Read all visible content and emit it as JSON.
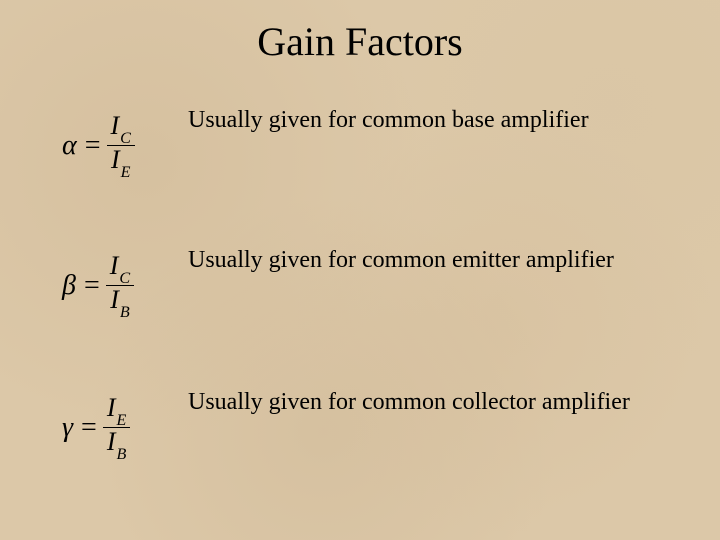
{
  "title": "Gain Factors",
  "text_color": "#000000",
  "background_color": "#dcc8a8",
  "title_fontsize": 40,
  "formula_fontsize": 28,
  "desc_fontsize": 24,
  "rows": [
    {
      "greek": "α",
      "num_var": "I",
      "num_sub": "C",
      "den_var": "I",
      "den_sub": "E",
      "desc": "Usually given for common base amplifier"
    },
    {
      "greek": "β",
      "num_var": "I",
      "num_sub": "C",
      "den_var": "I",
      "den_sub": "B",
      "desc": "Usually given for common emitter amplifier"
    },
    {
      "greek": "γ",
      "num_var": "I",
      "num_sub": "E",
      "den_var": "I",
      "den_sub": "B",
      "desc": "Usually given for common collector amplifier"
    }
  ]
}
